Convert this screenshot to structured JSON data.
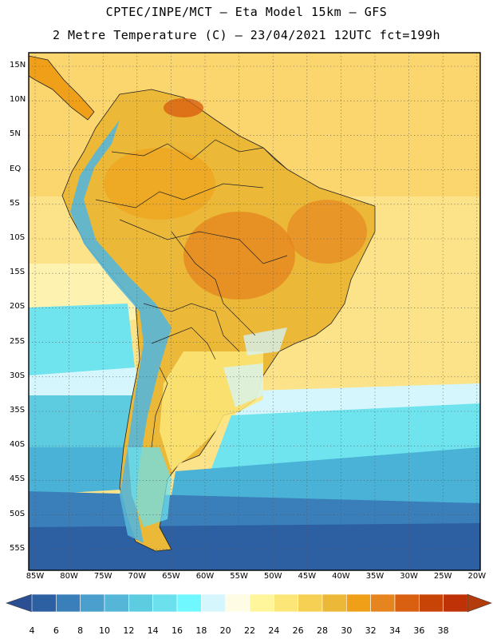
{
  "header": {
    "line1": "CPTEC/INPE/MCT –  Eta Model 15km – GFS",
    "line2": "2 Metre Temperature (C) – 23/04/2021 12UTC fct=199h"
  },
  "lat_labels": [
    "15N",
    "10N",
    "5N",
    "EQ",
    "5S",
    "10S",
    "15S",
    "20S",
    "25S",
    "30S",
    "35S",
    "40S",
    "45S",
    "50S",
    "55S"
  ],
  "lon_labels": [
    "85W",
    "80W",
    "75W",
    "70W",
    "65W",
    "60W",
    "55W",
    "50W",
    "45W",
    "40W",
    "35W",
    "30W",
    "25W",
    "20W"
  ],
  "colorbar": {
    "labels": [
      "4",
      "6",
      "8",
      "10",
      "12",
      "14",
      "16",
      "18",
      "20",
      "22",
      "24",
      "26",
      "28",
      "30",
      "32",
      "34",
      "36",
      "38"
    ],
    "colors": [
      "#2d5fa3",
      "#3a7fba",
      "#4a9fcc",
      "#56b6d8",
      "#5ecce0",
      "#6ce0ec",
      "#6ff8ff",
      "#d4f6fc",
      "#fffce6",
      "#fff59a",
      "#fde678",
      "#f5d052",
      "#ebb838",
      "#f0a018",
      "#e6841e",
      "#d96010",
      "#c84406",
      "#bf3208"
    ],
    "low_color": "#2a4f93",
    "high_color": "#b33c0c"
  },
  "legend_label": "2 Metre Temperature (C)"
}
